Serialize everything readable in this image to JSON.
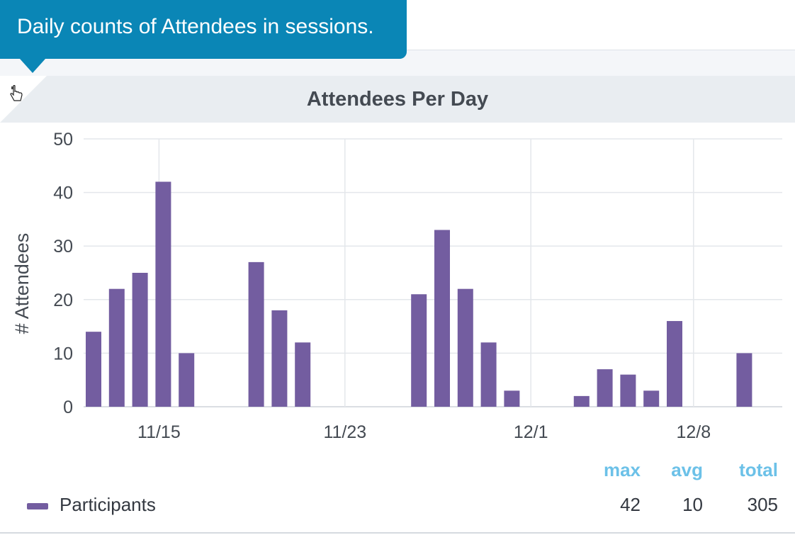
{
  "tooltip": {
    "text": "Daily counts of Attendees in sessions."
  },
  "icons": {
    "cursor": "hand-pointer-icon"
  },
  "colors": {
    "bar": "#735da0",
    "tooltip": "#0a86b6",
    "stat_header": "#6cc1e8"
  },
  "chart_data": {
    "type": "bar",
    "title": "Attendees Per Day",
    "ylabel": "# Attendees",
    "xlabel": "",
    "ylim": [
      0,
      50
    ],
    "yticks": [
      0,
      10,
      20,
      30,
      40,
      50
    ],
    "x_range": [
      "11/12",
      "12/12"
    ],
    "xticks": [
      "11/15",
      "11/23",
      "12/1",
      "12/8"
    ],
    "grid": true,
    "series": [
      {
        "name": "Participants",
        "color": "#735da0",
        "points": [
          {
            "x": "11/12",
            "y": 14
          },
          {
            "x": "11/13",
            "y": 22
          },
          {
            "x": "11/14",
            "y": 25
          },
          {
            "x": "11/15",
            "y": 42
          },
          {
            "x": "11/16",
            "y": 10
          },
          {
            "x": "11/19",
            "y": 27
          },
          {
            "x": "11/20",
            "y": 18
          },
          {
            "x": "11/21",
            "y": 12
          },
          {
            "x": "11/26",
            "y": 21
          },
          {
            "x": "11/27",
            "y": 33
          },
          {
            "x": "11/28",
            "y": 22
          },
          {
            "x": "11/29",
            "y": 12
          },
          {
            "x": "11/30",
            "y": 3
          },
          {
            "x": "12/3",
            "y": 2
          },
          {
            "x": "12/4",
            "y": 7
          },
          {
            "x": "12/5",
            "y": 6
          },
          {
            "x": "12/6",
            "y": 3
          },
          {
            "x": "12/7",
            "y": 16
          },
          {
            "x": "12/10",
            "y": 10
          }
        ]
      }
    ],
    "legend": "bottom-left"
  },
  "stats": {
    "headers": [
      "max",
      "avg",
      "total"
    ],
    "values": [
      "42",
      "10",
      "305"
    ]
  }
}
